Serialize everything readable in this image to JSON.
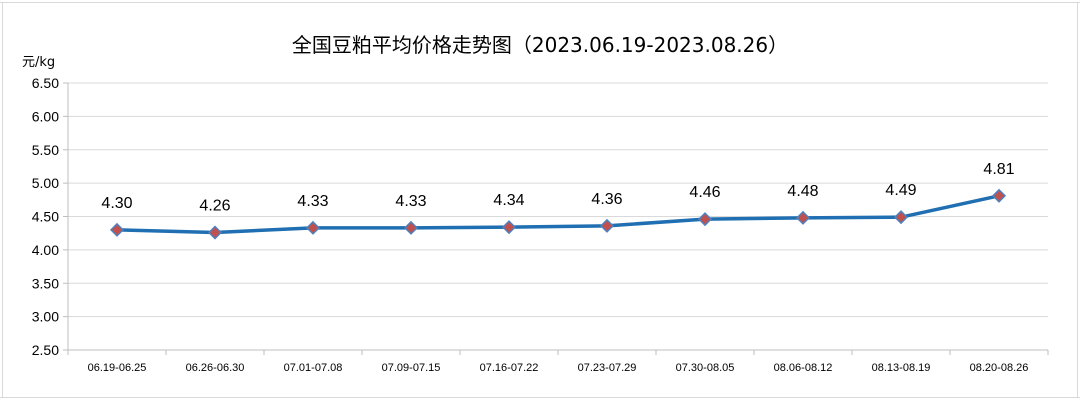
{
  "chart_data": {
    "type": "line",
    "title": "全国豆粕平均价格走势图（2023.06.19-2023.08.26）",
    "ylabel": "元/kg",
    "xlabel": "",
    "categories": [
      "06.19-06.25",
      "06.26-06.30",
      "07.01-07.08",
      "07.09-07.15",
      "07.16-07.22",
      "07.23-07.29",
      "07.30-08.05",
      "08.06-08.12",
      "08.13-08.19",
      "08.20-08.26"
    ],
    "series": [
      {
        "values": [
          4.3,
          4.26,
          4.33,
          4.33,
          4.34,
          4.36,
          4.46,
          4.48,
          4.49,
          4.81
        ],
        "labels": [
          "4.30",
          "4.26",
          "4.33",
          "4.33",
          "4.34",
          "4.36",
          "4.46",
          "4.48",
          "4.49",
          "4.81"
        ]
      }
    ],
    "ylim": [
      2.5,
      6.5
    ],
    "yticks": [
      "2.50",
      "3.00",
      "3.50",
      "4.00",
      "4.50",
      "5.00",
      "5.50",
      "6.00",
      "6.50"
    ],
    "grid": true,
    "legend": "none",
    "colors": {
      "line": "#1f6fb2",
      "marker_fill": "#c0504d",
      "marker_stroke": "#4f81bd",
      "grid": "#d9d9d9",
      "axis": "#bfbfbf",
      "text": "#000000"
    }
  }
}
